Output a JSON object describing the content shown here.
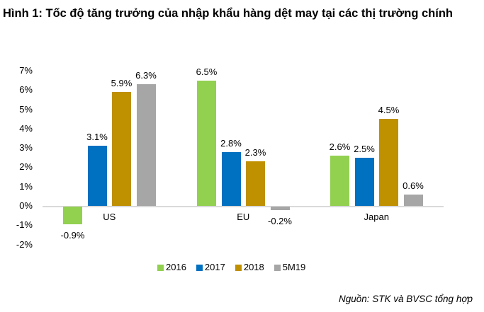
{
  "title": "Hình 1: Tốc độ tăng trưởng của nhập khẩu hàng dệt may tại các thị trường chính",
  "source": "Nguồn: STK và BVSC tổng hợp",
  "y_ticks": [
    "7%",
    "6%",
    "5%",
    "4%",
    "3%",
    "2%",
    "1%",
    "0%",
    "-1%",
    "-2%"
  ],
  "legend": [
    {
      "label": "2016",
      "color": "#92d050"
    },
    {
      "label": "2017",
      "color": "#0070c0"
    },
    {
      "label": "2018",
      "color": "#bf9000"
    },
    {
      "label": "5M19",
      "color": "#a6a6a6"
    }
  ],
  "groups": [
    {
      "category": "US",
      "labels": [
        "-0.9%",
        "3.1%",
        "5.9%",
        "6.3%"
      ]
    },
    {
      "category": "EU",
      "labels": [
        "6.5%",
        "2.8%",
        "2.3%",
        "-0.2%"
      ]
    },
    {
      "category": "Japan",
      "labels": [
        "2.6%",
        "2.5%",
        "4.5%",
        "0.6%"
      ]
    }
  ],
  "chart_data": {
    "type": "bar",
    "title": "Hình 1: Tốc độ tăng trưởng của nhập khẩu hàng dệt may tại các thị trường chính",
    "categories": [
      "US",
      "EU",
      "Japan"
    ],
    "series": [
      {
        "name": "2016",
        "values": [
          -0.9,
          6.5,
          2.6
        ],
        "color": "#92d050"
      },
      {
        "name": "2017",
        "values": [
          3.1,
          2.8,
          2.5
        ],
        "color": "#0070c0"
      },
      {
        "name": "2018",
        "values": [
          5.9,
          2.3,
          4.5
        ],
        "color": "#bf9000"
      },
      {
        "name": "5M19",
        "values": [
          6.3,
          -0.2,
          0.6
        ],
        "color": "#a6a6a6"
      }
    ],
    "xlabel": "",
    "ylabel": "",
    "ylim": [
      -2,
      7
    ],
    "y_unit": "%",
    "grid": false,
    "legend_position": "bottom",
    "source": "Nguồn: STK và BVSC tổng hợp"
  }
}
